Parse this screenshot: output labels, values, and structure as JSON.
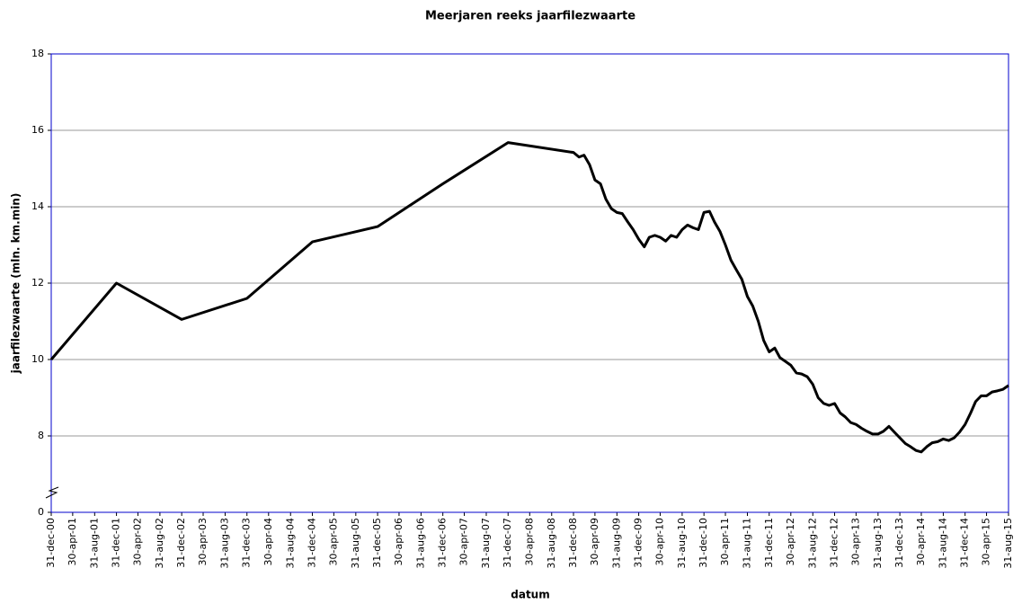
{
  "chart_data": {
    "type": "line",
    "title": "Meerjaren reeks jaarfilezwaarte",
    "xlabel": "datum",
    "ylabel": "jaarfilezwaarte (mln. km.min)",
    "ylim": [
      0,
      18
    ],
    "axis_break": [
      0,
      6
    ],
    "yticks": [
      0,
      8,
      10,
      12,
      14,
      16,
      18
    ],
    "grid": true,
    "border_color": "#0000cc",
    "xlim": [
      {
        "value": "2000-12-31",
        "label": "31-dec-00"
      },
      {
        "value": "2015-08-31",
        "label": "31-aug-15"
      }
    ],
    "xticks": [
      {
        "value": "2000-12-31",
        "label": "31-dec-00"
      },
      {
        "value": "2001-04-30",
        "label": "30-apr-01"
      },
      {
        "value": "2001-08-31",
        "label": "31-aug-01"
      },
      {
        "value": "2001-12-31",
        "label": "31-dec-01"
      },
      {
        "value": "2002-04-30",
        "label": "30-apr-02"
      },
      {
        "value": "2002-08-31",
        "label": "31-aug-02"
      },
      {
        "value": "2002-12-31",
        "label": "31-dec-02"
      },
      {
        "value": "2003-04-30",
        "label": "30-apr-03"
      },
      {
        "value": "2003-08-31",
        "label": "31-aug-03"
      },
      {
        "value": "2003-12-31",
        "label": "31-dec-03"
      },
      {
        "value": "2004-04-30",
        "label": "30-apr-04"
      },
      {
        "value": "2004-08-31",
        "label": "31-aug-04"
      },
      {
        "value": "2004-12-31",
        "label": "31-dec-04"
      },
      {
        "value": "2005-04-30",
        "label": "30-apr-05"
      },
      {
        "value": "2005-08-31",
        "label": "31-aug-05"
      },
      {
        "value": "2005-12-31",
        "label": "31-dec-05"
      },
      {
        "value": "2006-04-30",
        "label": "30-apr-06"
      },
      {
        "value": "2006-08-31",
        "label": "31-aug-06"
      },
      {
        "value": "2006-12-31",
        "label": "31-dec-06"
      },
      {
        "value": "2007-04-30",
        "label": "30-apr-07"
      },
      {
        "value": "2007-08-31",
        "label": "31-aug-07"
      },
      {
        "value": "2007-12-31",
        "label": "31-dec-07"
      },
      {
        "value": "2008-04-30",
        "label": "30-apr-08"
      },
      {
        "value": "2008-08-31",
        "label": "31-aug-08"
      },
      {
        "value": "2008-12-31",
        "label": "31-dec-08"
      },
      {
        "value": "2009-04-30",
        "label": "30-apr-09"
      },
      {
        "value": "2009-08-31",
        "label": "31-aug-09"
      },
      {
        "value": "2009-12-31",
        "label": "31-dec-09"
      },
      {
        "value": "2010-04-30",
        "label": "30-apr-10"
      },
      {
        "value": "2010-08-31",
        "label": "31-aug-10"
      },
      {
        "value": "2010-12-31",
        "label": "31-dec-10"
      },
      {
        "value": "2011-04-30",
        "label": "30-apr-11"
      },
      {
        "value": "2011-08-31",
        "label": "31-aug-11"
      },
      {
        "value": "2011-12-31",
        "label": "31-dec-11"
      },
      {
        "value": "2012-04-30",
        "label": "30-apr-12"
      },
      {
        "value": "2012-08-31",
        "label": "31-aug-12"
      },
      {
        "value": "2012-12-31",
        "label": "31-dec-12"
      },
      {
        "value": "2013-04-30",
        "label": "30-apr-13"
      },
      {
        "value": "2013-08-31",
        "label": "31-aug-13"
      },
      {
        "value": "2013-12-31",
        "label": "31-dec-13"
      },
      {
        "value": "2014-04-30",
        "label": "30-apr-14"
      },
      {
        "value": "2014-08-31",
        "label": "31-aug-14"
      },
      {
        "value": "2014-12-31",
        "label": "31-dec-14"
      },
      {
        "value": "2015-04-30",
        "label": "30-apr-15"
      },
      {
        "value": "2015-08-31",
        "label": "31-aug-15"
      }
    ],
    "x": [
      "2000-12-31",
      "2001-12-31",
      "2002-12-31",
      "2003-12-31",
      "2004-12-31",
      "2005-12-31",
      "2006-12-31",
      "2007-12-31",
      "2008-12-31",
      "2009-01-31",
      "2009-02-28",
      "2009-03-31",
      "2009-04-30",
      "2009-05-31",
      "2009-06-30",
      "2009-07-31",
      "2009-08-31",
      "2009-09-30",
      "2009-10-31",
      "2009-11-30",
      "2009-12-31",
      "2010-01-31",
      "2010-02-28",
      "2010-03-31",
      "2010-04-30",
      "2010-05-31",
      "2010-06-30",
      "2010-07-31",
      "2010-08-31",
      "2010-09-30",
      "2010-10-31",
      "2010-11-30",
      "2010-12-31",
      "2011-01-31",
      "2011-02-28",
      "2011-03-31",
      "2011-04-30",
      "2011-05-31",
      "2011-06-30",
      "2011-07-31",
      "2011-08-31",
      "2011-09-30",
      "2011-10-31",
      "2011-11-30",
      "2011-12-31",
      "2012-01-31",
      "2012-02-29",
      "2012-03-31",
      "2012-04-30",
      "2012-05-31",
      "2012-06-30",
      "2012-07-31",
      "2012-08-31",
      "2012-09-30",
      "2012-10-31",
      "2012-11-30",
      "2012-12-31",
      "2013-01-31",
      "2013-02-28",
      "2013-03-31",
      "2013-04-30",
      "2013-05-31",
      "2013-06-30",
      "2013-07-31",
      "2013-08-31",
      "2013-09-30",
      "2013-10-31",
      "2013-11-30",
      "2013-12-31",
      "2014-01-31",
      "2014-02-28",
      "2014-03-31",
      "2014-04-30",
      "2014-05-31",
      "2014-06-30",
      "2014-07-31",
      "2014-08-31",
      "2014-09-30",
      "2014-10-31",
      "2014-11-30",
      "2014-12-31",
      "2015-01-31",
      "2015-02-28",
      "2015-03-31",
      "2015-04-30",
      "2015-05-31",
      "2015-06-30",
      "2015-07-31",
      "2015-08-31"
    ],
    "series": [
      {
        "color": "#000000",
        "values": [
          10.0,
          12.0,
          11.05,
          11.6,
          13.08,
          13.48,
          14.6,
          15.68,
          15.42,
          15.3,
          15.35,
          15.1,
          14.7,
          14.6,
          14.2,
          13.95,
          13.85,
          13.82,
          13.6,
          13.4,
          13.15,
          12.95,
          13.2,
          13.25,
          13.2,
          13.1,
          13.25,
          13.2,
          13.4,
          13.52,
          13.45,
          13.4,
          13.85,
          13.88,
          13.6,
          13.35,
          13.0,
          12.6,
          12.35,
          12.1,
          11.65,
          11.4,
          11.0,
          10.5,
          10.2,
          10.3,
          10.05,
          9.95,
          9.85,
          9.65,
          9.62,
          9.55,
          9.35,
          9.0,
          8.85,
          8.8,
          8.85,
          8.6,
          8.5,
          8.35,
          8.3,
          8.2,
          8.12,
          8.05,
          8.05,
          8.12,
          8.25,
          8.1,
          7.95,
          7.8,
          7.72,
          7.62,
          7.58,
          7.72,
          7.82,
          7.85,
          7.92,
          7.88,
          7.95,
          8.1,
          8.3,
          8.6,
          8.9,
          9.05,
          9.05,
          9.15,
          9.18,
          9.22,
          9.32
        ]
      }
    ]
  }
}
